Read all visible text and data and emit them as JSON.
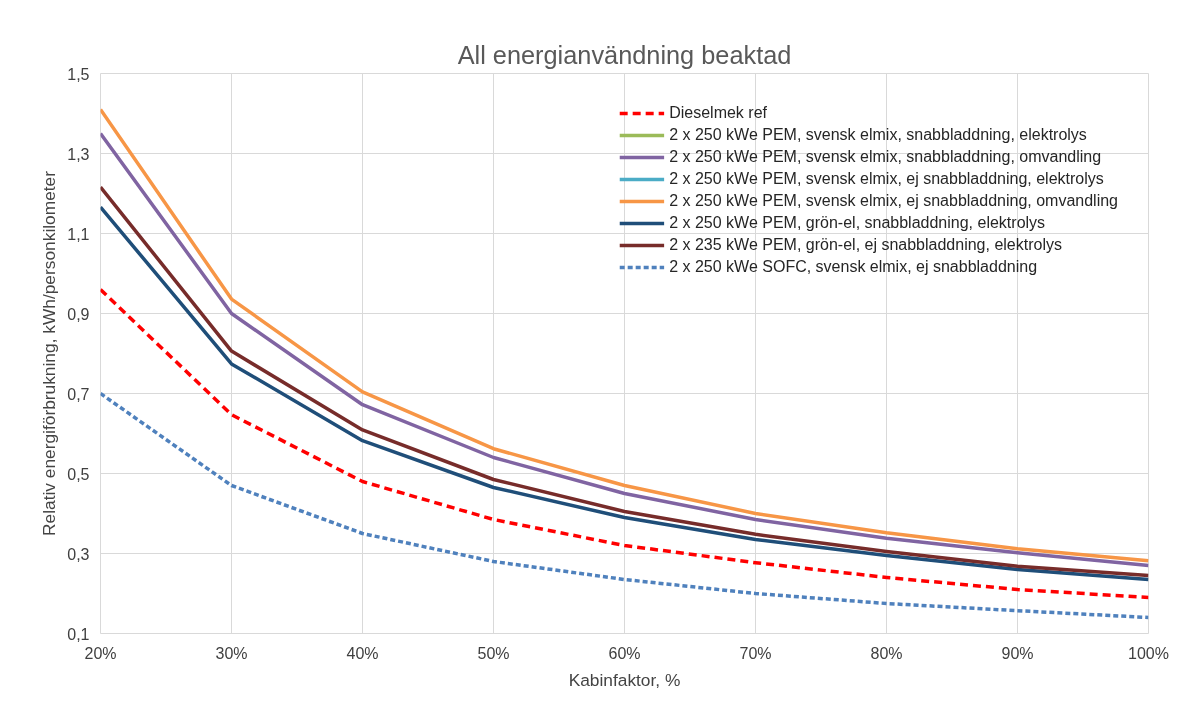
{
  "chart_data": {
    "type": "line",
    "title": "All energianvändning beaktad",
    "xlabel": "Kabinfaktor, %",
    "ylabel": "Relativ energiförbrukning, kWh/personkilometer",
    "x": [
      20,
      30,
      40,
      50,
      60,
      70,
      80,
      90,
      100
    ],
    "xlim": [
      20,
      100
    ],
    "xticks": [
      {
        "value": 20,
        "label": "20%"
      },
      {
        "value": 30,
        "label": "30%"
      },
      {
        "value": 40,
        "label": "40%"
      },
      {
        "value": 50,
        "label": "50%"
      },
      {
        "value": 60,
        "label": "60%"
      },
      {
        "value": 70,
        "label": "70%"
      },
      {
        "value": 80,
        "label": "80%"
      },
      {
        "value": 90,
        "label": "90%"
      },
      {
        "value": 100,
        "label": "100%"
      }
    ],
    "ylim": [
      0.1,
      1.5
    ],
    "yticks": [
      {
        "value": 0.1,
        "label": "0,1"
      },
      {
        "value": 0.3,
        "label": "0,3"
      },
      {
        "value": 0.5,
        "label": "0,5"
      },
      {
        "value": 0.7,
        "label": "0,7"
      },
      {
        "value": 0.9,
        "label": "0,9"
      },
      {
        "value": 1.1,
        "label": "1,1"
      },
      {
        "value": 1.3,
        "label": "1,3"
      },
      {
        "value": 1.5,
        "label": "1,5"
      }
    ],
    "grid": true,
    "legend": "top right",
    "marker": "none",
    "series": [
      {
        "name": "Dieselmek ref",
        "color": "#ff0000",
        "line_style": "dashed",
        "values": [
          0.96,
          0.647,
          0.48,
          0.385,
          0.32,
          0.277,
          0.24,
          0.21,
          0.19
        ]
      },
      {
        "name": "2 x 250 kWe PEM, svensk elmix, snabbladdning, elektrolys",
        "color": "#9bbb59",
        "line_style": "solid",
        "values": [
          null,
          null,
          null,
          null,
          null,
          null,
          null,
          null,
          null
        ]
      },
      {
        "name": "2 x 250 kWe PEM, svensk elmix, snabbladdning, omvandling",
        "color": "#8064a2",
        "line_style": "solid",
        "values": [
          1.35,
          0.9,
          0.672,
          0.54,
          0.45,
          0.385,
          0.338,
          0.302,
          0.27
        ]
      },
      {
        "name": "2 x 250 kWe PEM, svensk elmix, ej snabbladdning, elektrolys",
        "color": "#4bacc6",
        "line_style": "solid",
        "values": [
          null,
          null,
          null,
          null,
          null,
          null,
          null,
          null,
          null
        ]
      },
      {
        "name": "2 x 250 kWe PEM, svensk elmix, ej snabbladdning, omvandling",
        "color": "#f79646",
        "line_style": "solid",
        "values": [
          1.41,
          0.936,
          0.704,
          0.562,
          0.47,
          0.4,
          0.352,
          0.312,
          0.282
        ]
      },
      {
        "name": "2 x 250 kWe PEM, grön-el, snabbladdning, elektrolys",
        "color": "#1f4e79",
        "line_style": "solid",
        "values": [
          1.166,
          0.774,
          0.582,
          0.465,
          0.39,
          0.335,
          0.295,
          0.26,
          0.235
        ]
      },
      {
        "name": "2 x 235 kWe PEM, grön-el, ej snabbladdning, elektrolys",
        "color": "#772c2a",
        "line_style": "solid",
        "values": [
          1.216,
          0.806,
          0.609,
          0.485,
          0.405,
          0.348,
          0.305,
          0.268,
          0.245
        ]
      },
      {
        "name": "2 x 250 kWe SOFC, svensk elmix, ej snabbladdning",
        "color": "#4f81bd",
        "line_style": "dotted",
        "values": [
          0.7,
          0.47,
          0.35,
          0.28,
          0.235,
          0.2,
          0.175,
          0.157,
          0.14
        ]
      }
    ]
  }
}
